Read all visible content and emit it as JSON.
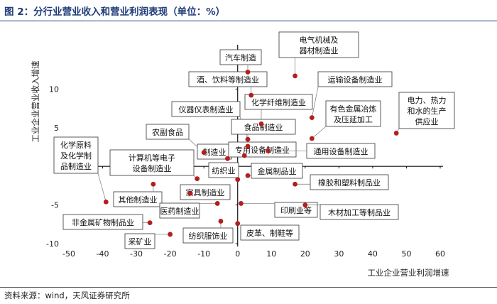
{
  "figure": {
    "title": "图 2：分行业营业收入和营业利润表现（单位：%）",
    "source": "资料来源：wind，天风证券研究所"
  },
  "colors": {
    "title": "#1f3b78",
    "point": "#b41e1e",
    "axis": "#111111",
    "label_border": "#333333"
  },
  "chart_data": {
    "type": "scatter",
    "xlabel": "工业企业营业利润增速",
    "ylabel": "工业企业营业收入增速",
    "xlim": [
      -50,
      60
    ],
    "ylim": [
      -10,
      15
    ],
    "xticks": [
      -50,
      -40,
      -30,
      -20,
      -10,
      0,
      10,
      20,
      30,
      40,
      50,
      60
    ],
    "yticks": [
      -10,
      -5,
      0,
      5,
      10
    ],
    "grid": false,
    "points": [
      {
        "name": "电气机械及器材制造业",
        "x": 17,
        "y": 11.7
      },
      {
        "name": "汽车制造",
        "x": 3,
        "y": 12.2
      },
      {
        "name": "酒、饮料等制造业",
        "x": 4,
        "y": 9.2
      },
      {
        "name": "运输设备制造业",
        "x": 22,
        "y": 6.3
      },
      {
        "name": "化学纤维制造业",
        "x": 7,
        "y": 5.5
      },
      {
        "name": "有色金属冶炼及压延加工",
        "x": 22,
        "y": 3.6
      },
      {
        "name": "仪器仪表制造业",
        "x": 3,
        "y": 3.5
      },
      {
        "name": "食品制造业",
        "x": 3,
        "y": 2.6
      },
      {
        "name": "电力、热力和水的生产供应业",
        "x": 47,
        "y": 4.3
      },
      {
        "name": "农副食品",
        "x": -10,
        "y": 1.8
      },
      {
        "name": "制造业",
        "x": -3,
        "y": 1.0
      },
      {
        "name": "专用设备制造业",
        "x": 2,
        "y": 1.4
      },
      {
        "name": "通用设备制造业",
        "x": 9,
        "y": 2.0
      },
      {
        "name": "化学原料及化学制品制造业",
        "x": -39,
        "y": -4.6
      },
      {
        "name": "计算机等电子设备制造业",
        "x": -12,
        "y": -1.6
      },
      {
        "name": "纺织业",
        "x": 0,
        "y": -1.7
      },
      {
        "name": "金属制品业",
        "x": 3,
        "y": -1.2
      },
      {
        "name": "橡胶和塑料制品业",
        "x": 17,
        "y": -2.3
      },
      {
        "name": "其他制造业",
        "x": -25,
        "y": -2.3
      },
      {
        "name": "家具制造业",
        "x": -14,
        "y": -3.5
      },
      {
        "name": "医药制造业",
        "x": -6,
        "y": -4.8
      },
      {
        "name": "印刷业等",
        "x": 1,
        "y": -4.8
      },
      {
        "name": "木材加工等制品业",
        "x": 20,
        "y": -5.0
      },
      {
        "name": "非金属矿物制品业",
        "x": -26,
        "y": -7.3
      },
      {
        "name": "纺织服饰业",
        "x": -5,
        "y": -7.1
      },
      {
        "name": "皮革、制鞋等",
        "x": 0,
        "y": -7.4
      },
      {
        "name": "采矿业",
        "x": -20,
        "y": -8.8
      }
    ]
  }
}
